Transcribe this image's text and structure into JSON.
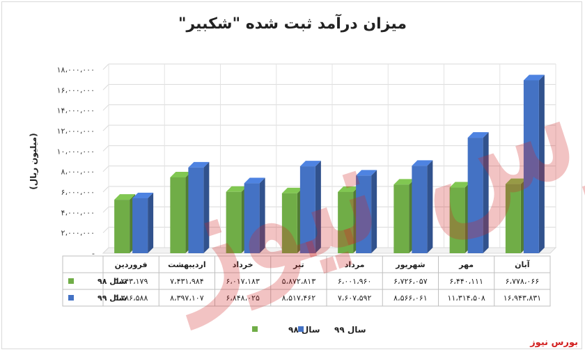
{
  "title": "میزان درآمد ثبت شده \"شکبیر\"",
  "watermark": "بورس نیوز",
  "brand": "بورس نیوز",
  "chart_data": {
    "type": "bar",
    "title": "میزان درآمد ثبت شده \"شکبیر\"",
    "ylabel": "(میلیون ریال)",
    "xlabel": "",
    "ylim": [
      0,
      18000000
    ],
    "yticks": [
      0,
      2000000,
      4000000,
      6000000,
      8000000,
      10000000,
      12000000,
      14000000,
      16000000,
      18000000
    ],
    "ytick_labels": [
      "-",
      "۲،۰۰۰،۰۰۰",
      "۴،۰۰۰،۰۰۰",
      "۶،۰۰۰،۰۰۰",
      "۸،۰۰۰،۰۰۰",
      "۱۰،۰۰۰،۰۰۰",
      "۱۲،۰۰۰،۰۰۰",
      "۱۴،۰۰۰،۰۰۰",
      "۱۶،۰۰۰،۰۰۰",
      "۱۸،۰۰۰،۰۰۰"
    ],
    "categories": [
      "فروردین",
      "اردیبهشت",
      "خرداد",
      "تیر",
      "مرداد",
      "شهریور",
      "مهر",
      "آبان"
    ],
    "grid": true,
    "legend_position": "bottom",
    "series": [
      {
        "name": "سال ۹۸",
        "color": "#70ad47",
        "values": [
          5243179,
          7431984,
          6017183,
          5872813,
          6001960,
          6726057,
          6440111,
          6778066
        ],
        "labels": [
          "۵،۲۴۳،۱۷۹",
          "۷،۴۳۱،۹۸۴",
          "۶،۰۱۷،۱۸۳",
          "۵،۸۷۲،۸۱۳",
          "۶،۰۰۱،۹۶۰",
          "۶،۷۲۶،۰۵۷",
          "۶،۴۴۰،۱۱۱",
          "۶،۷۷۸،۰۶۶"
        ]
      },
      {
        "name": "سال ۹۹",
        "color": "#4472c4",
        "values": [
          5386588,
          8397107,
          6848025,
          8517462,
          7607592,
          8566061,
          11314508,
          16943831
        ],
        "labels": [
          "۵،۳۸۶،۵۸۸",
          "۸،۳۹۷،۱۰۷",
          "۶،۸۴۸،۰۲۵",
          "۸،۵۱۷،۴۶۲",
          "۷،۶۰۷،۵۹۲",
          "۸،۵۶۶،۰۶۱",
          "۱۱،۳۱۴،۵۰۸",
          "۱۶،۹۴۳،۸۳۱"
        ]
      }
    ]
  }
}
